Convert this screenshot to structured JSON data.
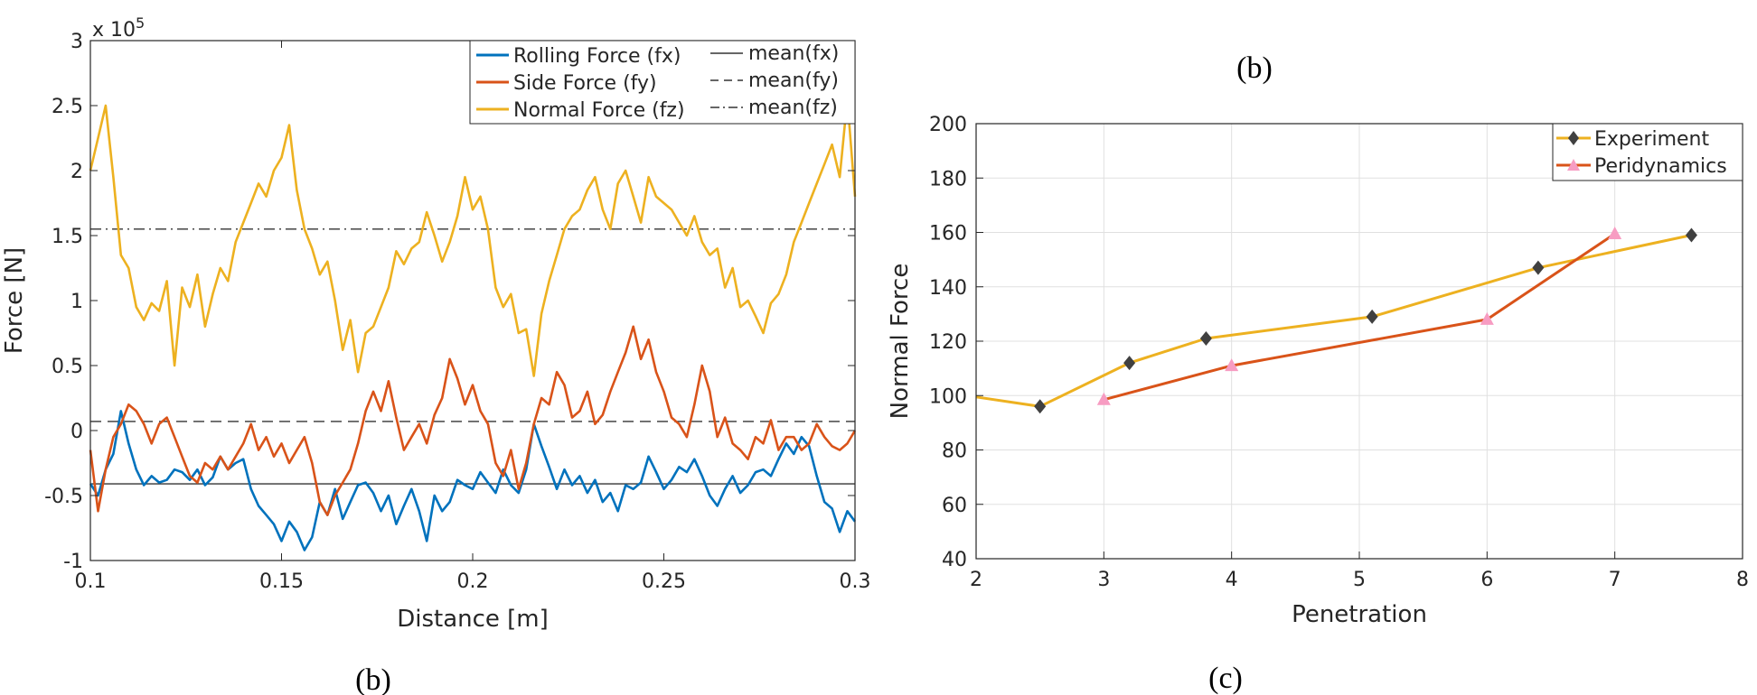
{
  "chart_data": [
    {
      "type": "line",
      "caption": "(b)",
      "xlabel": "Distance [m]",
      "ylabel": "Force [N]",
      "y_exponent_label": "x 10",
      "y_exponent": "5",
      "xlim": [
        0.1,
        0.3
      ],
      "ylim": [
        -1,
        3
      ],
      "x_ticks": [
        0.1,
        0.15,
        0.2,
        0.25,
        0.3
      ],
      "x_tick_labels": [
        "0.1",
        "0.15",
        "0.2",
        "0.25",
        "0.3"
      ],
      "y_ticks": [
        -1,
        -0.5,
        0,
        0.5,
        1,
        1.5,
        2,
        2.5,
        3
      ],
      "y_tick_labels": [
        "-1",
        "-0.5",
        "0",
        "0.5",
        "1",
        "1.5",
        "2",
        "2.5",
        "3"
      ],
      "grid": false,
      "legend_position": "top-right",
      "series": [
        {
          "name": "Rolling Force (fx)",
          "color": "#0072BD",
          "x": [
            0.1,
            0.102,
            0.104,
            0.106,
            0.108,
            0.11,
            0.112,
            0.114,
            0.116,
            0.118,
            0.12,
            0.122,
            0.124,
            0.126,
            0.128,
            0.13,
            0.132,
            0.134,
            0.136,
            0.138,
            0.14,
            0.142,
            0.144,
            0.146,
            0.148,
            0.15,
            0.152,
            0.154,
            0.156,
            0.158,
            0.16,
            0.162,
            0.164,
            0.166,
            0.168,
            0.17,
            0.172,
            0.174,
            0.176,
            0.178,
            0.18,
            0.182,
            0.184,
            0.186,
            0.188,
            0.19,
            0.192,
            0.194,
            0.196,
            0.198,
            0.2,
            0.202,
            0.204,
            0.206,
            0.208,
            0.21,
            0.212,
            0.214,
            0.216,
            0.218,
            0.22,
            0.222,
            0.224,
            0.226,
            0.228,
            0.23,
            0.232,
            0.234,
            0.236,
            0.238,
            0.24,
            0.242,
            0.244,
            0.246,
            0.248,
            0.25,
            0.252,
            0.254,
            0.256,
            0.258,
            0.26,
            0.262,
            0.264,
            0.266,
            0.268,
            0.27,
            0.272,
            0.274,
            0.276,
            0.278,
            0.28,
            0.282,
            0.284,
            0.286,
            0.288,
            0.29,
            0.292,
            0.294,
            0.296,
            0.298,
            0.3
          ],
          "y": [
            -0.41,
            -0.5,
            -0.3,
            -0.18,
            0.15,
            -0.1,
            -0.3,
            -0.42,
            -0.35,
            -0.4,
            -0.38,
            -0.3,
            -0.32,
            -0.38,
            -0.3,
            -0.42,
            -0.36,
            -0.2,
            -0.3,
            -0.25,
            -0.22,
            -0.45,
            -0.58,
            -0.65,
            -0.72,
            -0.85,
            -0.7,
            -0.78,
            -0.92,
            -0.82,
            -0.55,
            -0.65,
            -0.45,
            -0.68,
            -0.55,
            -0.42,
            -0.4,
            -0.48,
            -0.62,
            -0.5,
            -0.72,
            -0.58,
            -0.45,
            -0.62,
            -0.85,
            -0.5,
            -0.62,
            -0.55,
            -0.38,
            -0.42,
            -0.45,
            -0.32,
            -0.4,
            -0.48,
            -0.3,
            -0.42,
            -0.48,
            -0.3,
            0.05,
            -0.12,
            -0.28,
            -0.45,
            -0.3,
            -0.42,
            -0.35,
            -0.48,
            -0.38,
            -0.55,
            -0.48,
            -0.62,
            -0.42,
            -0.45,
            -0.4,
            -0.2,
            -0.32,
            -0.45,
            -0.38,
            -0.28,
            -0.32,
            -0.22,
            -0.35,
            -0.5,
            -0.58,
            -0.45,
            -0.35,
            -0.48,
            -0.42,
            -0.32,
            -0.3,
            -0.35,
            -0.22,
            -0.1,
            -0.18,
            -0.05,
            -0.12,
            -0.35,
            -0.55,
            -0.6,
            -0.78,
            -0.62,
            -0.7
          ]
        },
        {
          "name": "Side Force (fy)",
          "color": "#D95319",
          "x": [
            0.1,
            0.102,
            0.104,
            0.106,
            0.108,
            0.11,
            0.112,
            0.114,
            0.116,
            0.118,
            0.12,
            0.122,
            0.124,
            0.126,
            0.128,
            0.13,
            0.132,
            0.134,
            0.136,
            0.138,
            0.14,
            0.142,
            0.144,
            0.146,
            0.148,
            0.15,
            0.152,
            0.154,
            0.156,
            0.158,
            0.16,
            0.162,
            0.164,
            0.166,
            0.168,
            0.17,
            0.172,
            0.174,
            0.176,
            0.178,
            0.18,
            0.182,
            0.184,
            0.186,
            0.188,
            0.19,
            0.192,
            0.194,
            0.196,
            0.198,
            0.2,
            0.202,
            0.204,
            0.206,
            0.208,
            0.21,
            0.212,
            0.214,
            0.216,
            0.218,
            0.22,
            0.222,
            0.224,
            0.226,
            0.228,
            0.23,
            0.232,
            0.234,
            0.236,
            0.238,
            0.24,
            0.242,
            0.244,
            0.246,
            0.248,
            0.25,
            0.252,
            0.254,
            0.256,
            0.258,
            0.26,
            0.262,
            0.264,
            0.266,
            0.268,
            0.27,
            0.272,
            0.274,
            0.276,
            0.278,
            0.28,
            0.282,
            0.284,
            0.286,
            0.288,
            0.29,
            0.292,
            0.294,
            0.296,
            0.298,
            0.3
          ],
          "y": [
            -0.15,
            -0.62,
            -0.3,
            -0.05,
            0.05,
            0.2,
            0.15,
            0.05,
            -0.1,
            0.05,
            0.1,
            -0.05,
            -0.2,
            -0.35,
            -0.4,
            -0.25,
            -0.3,
            -0.2,
            -0.3,
            -0.2,
            -0.1,
            0.05,
            -0.15,
            -0.05,
            -0.2,
            -0.1,
            -0.25,
            -0.15,
            -0.05,
            -0.25,
            -0.55,
            -0.65,
            -0.5,
            -0.4,
            -0.3,
            -0.1,
            0.15,
            0.3,
            0.15,
            0.38,
            0.1,
            -0.15,
            -0.05,
            0.05,
            -0.1,
            0.12,
            0.25,
            0.55,
            0.4,
            0.2,
            0.35,
            0.15,
            0.05,
            -0.25,
            -0.35,
            -0.15,
            -0.45,
            -0.25,
            0.05,
            0.25,
            0.2,
            0.45,
            0.35,
            0.1,
            0.15,
            0.3,
            0.05,
            0.12,
            0.3,
            0.45,
            0.6,
            0.8,
            0.55,
            0.7,
            0.45,
            0.3,
            0.1,
            0.05,
            -0.05,
            0.2,
            0.5,
            0.3,
            -0.05,
            0.1,
            -0.1,
            -0.15,
            -0.22,
            -0.05,
            -0.1,
            0.08,
            -0.15,
            -0.05,
            -0.05,
            -0.15,
            -0.1,
            0.05,
            -0.05,
            -0.12,
            -0.15,
            -0.1,
            0.0
          ]
        },
        {
          "name": "Normal Force (fz)",
          "color": "#EDB120",
          "x": [
            0.1,
            0.102,
            0.104,
            0.106,
            0.108,
            0.11,
            0.112,
            0.114,
            0.116,
            0.118,
            0.12,
            0.122,
            0.124,
            0.126,
            0.128,
            0.13,
            0.132,
            0.134,
            0.136,
            0.138,
            0.14,
            0.142,
            0.144,
            0.146,
            0.148,
            0.15,
            0.152,
            0.154,
            0.156,
            0.158,
            0.16,
            0.162,
            0.164,
            0.166,
            0.168,
            0.17,
            0.172,
            0.174,
            0.176,
            0.178,
            0.18,
            0.182,
            0.184,
            0.186,
            0.188,
            0.19,
            0.192,
            0.194,
            0.196,
            0.198,
            0.2,
            0.202,
            0.204,
            0.206,
            0.208,
            0.21,
            0.212,
            0.214,
            0.216,
            0.218,
            0.22,
            0.222,
            0.224,
            0.226,
            0.228,
            0.23,
            0.232,
            0.234,
            0.236,
            0.238,
            0.24,
            0.242,
            0.244,
            0.246,
            0.248,
            0.25,
            0.252,
            0.254,
            0.256,
            0.258,
            0.26,
            0.262,
            0.264,
            0.266,
            0.268,
            0.27,
            0.272,
            0.274,
            0.276,
            0.278,
            0.28,
            0.282,
            0.284,
            0.286,
            0.288,
            0.29,
            0.292,
            0.294,
            0.296,
            0.298,
            0.3
          ],
          "y": [
            2.0,
            2.25,
            2.5,
            1.95,
            1.35,
            1.25,
            0.95,
            0.85,
            0.98,
            0.92,
            1.15,
            0.5,
            1.1,
            0.95,
            1.2,
            0.8,
            1.05,
            1.25,
            1.15,
            1.45,
            1.6,
            1.75,
            1.9,
            1.8,
            2.0,
            2.1,
            2.35,
            1.85,
            1.55,
            1.4,
            1.2,
            1.3,
            1.0,
            0.62,
            0.85,
            0.45,
            0.75,
            0.8,
            0.95,
            1.1,
            1.38,
            1.28,
            1.4,
            1.45,
            1.68,
            1.5,
            1.3,
            1.45,
            1.65,
            1.95,
            1.7,
            1.8,
            1.55,
            1.1,
            0.95,
            1.05,
            0.75,
            0.78,
            0.42,
            0.9,
            1.15,
            1.35,
            1.55,
            1.65,
            1.7,
            1.85,
            1.95,
            1.7,
            1.55,
            1.9,
            2.0,
            1.8,
            1.6,
            1.95,
            1.8,
            1.75,
            1.7,
            1.6,
            1.5,
            1.65,
            1.45,
            1.35,
            1.4,
            1.1,
            1.25,
            0.95,
            1.0,
            0.88,
            0.75,
            0.98,
            1.05,
            1.2,
            1.45,
            1.6,
            1.75,
            1.9,
            2.05,
            2.2,
            1.95,
            2.55,
            1.8
          ]
        },
        {
          "name": "mean(fx)",
          "color": "#333333",
          "style": "solid",
          "mean": -0.41
        },
        {
          "name": "mean(fy)",
          "color": "#333333",
          "style": "dashed",
          "mean": 0.07
        },
        {
          "name": "mean(fz)",
          "color": "#333333",
          "style": "dashdot",
          "mean": 1.55
        }
      ]
    },
    {
      "type": "line",
      "title": "(b)",
      "caption": "(c)",
      "xlabel": "Penetration",
      "ylabel": "Normal Force",
      "xlim": [
        2,
        8
      ],
      "ylim": [
        40,
        200
      ],
      "x_ticks": [
        2,
        3,
        4,
        5,
        6,
        7,
        8
      ],
      "x_tick_labels": [
        "2",
        "3",
        "4",
        "5",
        "6",
        "7",
        "8"
      ],
      "y_ticks": [
        40,
        60,
        80,
        100,
        120,
        140,
        160,
        180,
        200
      ],
      "y_tick_labels": [
        "40",
        "60",
        "80",
        "100",
        "120",
        "140",
        "160",
        "180",
        "200"
      ],
      "grid": true,
      "legend_position": "top-right",
      "series": [
        {
          "name": "Experiment",
          "color": "#EDB120",
          "marker": "diamond",
          "marker_color": "#404040",
          "x": [
            2,
            2.5,
            3.2,
            3.8,
            5.1,
            6.4,
            7.6
          ],
          "y": [
            99.5,
            96,
            112,
            121,
            129,
            147,
            159
          ],
          "marked": [
            false,
            true,
            true,
            true,
            true,
            true,
            true
          ]
        },
        {
          "name": "Peridynamics",
          "color": "#D95319",
          "marker": "triangle",
          "marker_color": "#F79CC2",
          "x": [
            3,
            4,
            6,
            7
          ],
          "y": [
            98.5,
            111,
            128,
            159.5
          ]
        }
      ]
    }
  ]
}
